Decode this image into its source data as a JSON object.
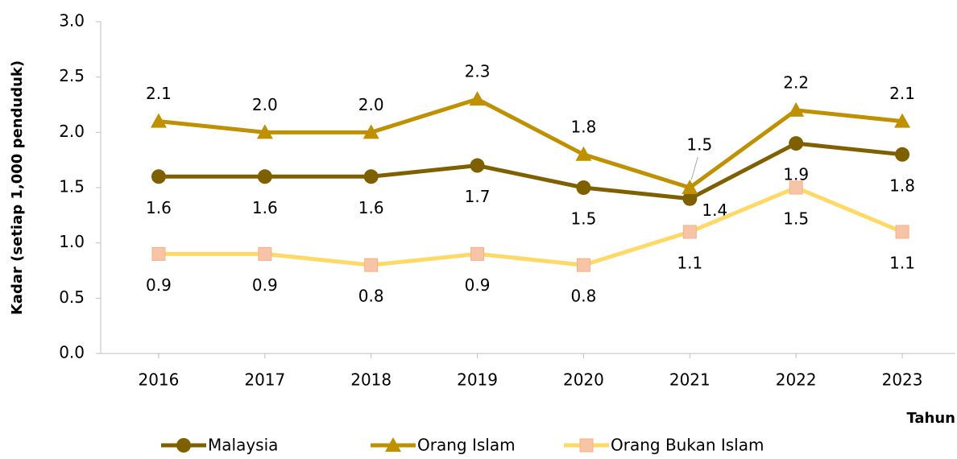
{
  "chart_data": {
    "type": "line",
    "y_label": "Kadar (setiap 1,000 penduduk)",
    "x_label": "Tahun",
    "categories": [
      "2016",
      "2017",
      "2018",
      "2019",
      "2020",
      "2021",
      "2022",
      "2023"
    ],
    "series": [
      {
        "name": "Malaysia",
        "color": "#7f6000",
        "marker": "circle",
        "values": [
          1.6,
          1.6,
          1.6,
          1.7,
          1.5,
          1.4,
          1.9,
          1.8
        ],
        "value_labels": [
          "1.6",
          "1.6",
          "1.6",
          "1.7",
          "1.5",
          "1.4",
          "1.9",
          "1.8"
        ]
      },
      {
        "name": "Orang Islam",
        "color": "#bf9000",
        "marker": "triangle",
        "values": [
          2.1,
          2,
          2,
          2.3,
          1.8,
          1.5,
          2.2,
          2.1
        ],
        "value_labels": [
          "2.1",
          "2.0",
          "2.0",
          "2.3",
          "1.8",
          "1.5",
          "2.2",
          "2.1"
        ]
      },
      {
        "name": "Orang Bukan Islam",
        "color": "#ffd966",
        "marker": "square",
        "values": [
          0.9,
          0.9,
          0.8,
          0.9,
          0.8,
          1.1,
          1.5,
          1.1
        ],
        "value_labels": [
          "0.9",
          "0.9",
          "0.8",
          "0.9",
          "0.8",
          "1.1",
          "1.5",
          "1.1"
        ]
      }
    ],
    "ylim": [
      0,
      3
    ],
    "yticks": [
      {
        "value": 0,
        "label": "0.0"
      },
      0.5,
      {
        "value": 1,
        "label": "1.0"
      },
      1.5,
      {
        "value": 2,
        "label": "2.0"
      },
      2.5,
      {
        "value": 3,
        "label": "3.0"
      }
    ],
    "legend": "bottom"
  }
}
